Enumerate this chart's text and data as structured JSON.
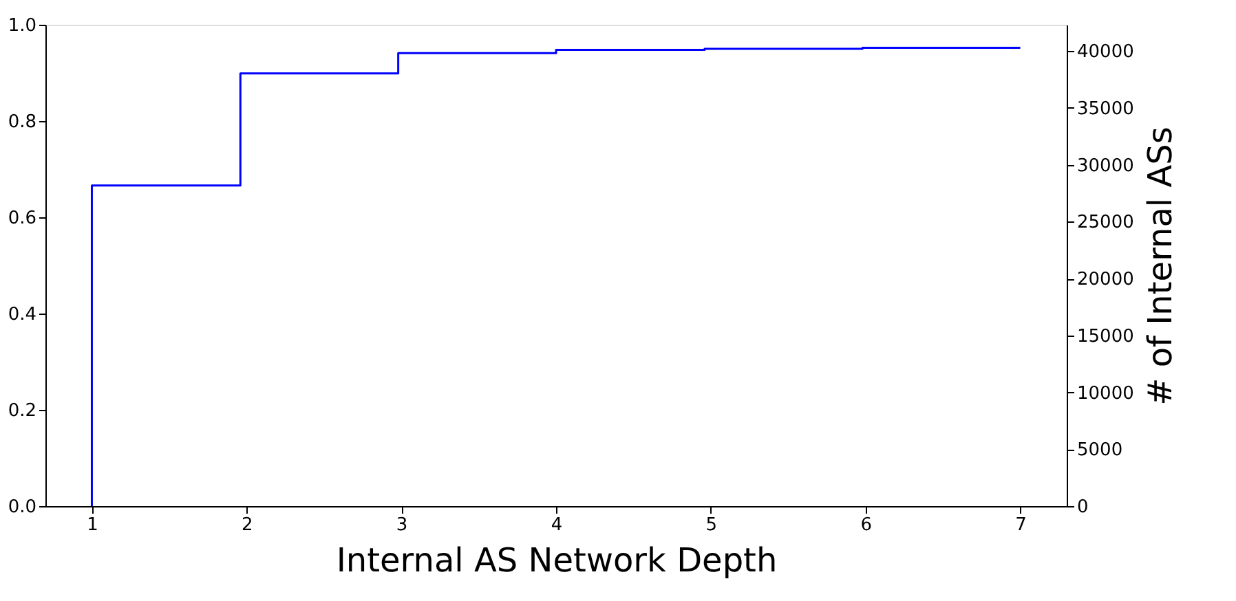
{
  "chart_data": {
    "type": "step",
    "xlabel": "Internal AS Network Depth",
    "y2label": "# of Internal ASs",
    "x": [
      1,
      1,
      1.96,
      2.98,
      4.0,
      4.96,
      5.98,
      7
    ],
    "series": [
      {
        "color": "#0000ff",
        "values": [
          0,
          0.666,
          0.899,
          0.941,
          0.948,
          0.95,
          0.952,
          0.952
        ]
      }
    ],
    "xlim": [
      0.7,
      7.3
    ],
    "xticks": [
      1,
      2,
      3,
      4,
      5,
      6,
      7
    ],
    "ylim": [
      0,
      1
    ],
    "yticks": [
      {
        "value": 0,
        "label": "0.0"
      },
      0.2,
      0.4,
      0.6,
      0.8,
      {
        "value": 1,
        "label": "1.0"
      }
    ],
    "y2lim": [
      0,
      42300
    ],
    "y2ticks": [
      0,
      5000,
      10000,
      15000,
      20000,
      25000,
      30000,
      35000,
      40000
    ],
    "grid": false,
    "line_style": "solid",
    "marker": "none"
  }
}
